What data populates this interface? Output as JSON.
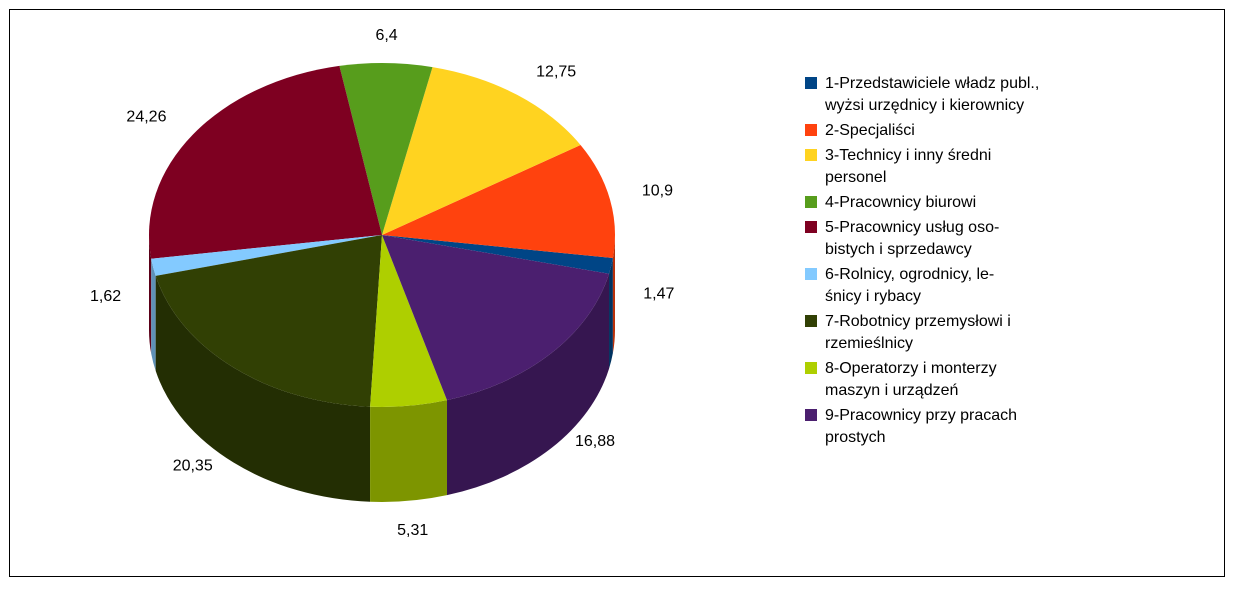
{
  "chart_data": {
    "type": "pie",
    "title": "",
    "slices": [
      {
        "label": "1-Przedstawiciele władz publ.,\nwyżsi urzędnicy i kierownicy",
        "value": 1.47,
        "value_text": "1,47",
        "color": "#004586"
      },
      {
        "label": "2-Specjaliści",
        "value": 10.9,
        "value_text": "10,9",
        "color": "#ff420e"
      },
      {
        "label": "3-Technicy i inny średni\npersonel",
        "value": 12.75,
        "value_text": "12,75",
        "color": "#ffd320"
      },
      {
        "label": "4-Pracownicy biurowi",
        "value": 6.4,
        "value_text": "6,4",
        "color": "#579d1c"
      },
      {
        "label": "5-Pracownicy usług oso-\nbistych i sprzedawcy",
        "value": 24.26,
        "value_text": "24,26",
        "color": "#7e0021"
      },
      {
        "label": "6-Rolnicy, ogrodnicy, le-\nśnicy i rybacy",
        "value": 1.62,
        "value_text": "1,62",
        "color": "#83caff"
      },
      {
        "label": "7-Robotnicy przemysłowi i\nrzemieślnicy",
        "value": 20.35,
        "value_text": "20,35",
        "color": "#314004"
      },
      {
        "label": "8-Operatorzy i monterzy\nmaszyn i urządzeń",
        "value": 5.31,
        "value_text": "5,31",
        "color": "#aecf00"
      },
      {
        "label": "9-Pracownicy przy pracach\nprostych",
        "value": 16.88,
        "value_text": "16,88",
        "color": "#4b1f6f"
      }
    ],
    "legend_position": "right",
    "style": "3d"
  }
}
